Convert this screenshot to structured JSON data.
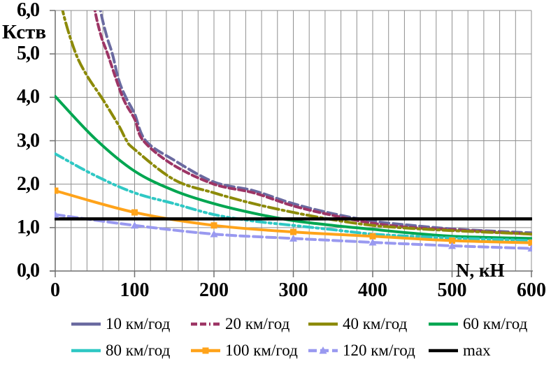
{
  "chart_data": {
    "type": "line",
    "title": "",
    "xlabel": "N, кН",
    "ylabel": "Кств",
    "xlim": [
      0,
      600
    ],
    "ylim": [
      0,
      6
    ],
    "x_minor_step": 20,
    "x_major_step": 100,
    "y_major_step": 1,
    "x_tick_labels": [
      "0",
      "100",
      "200",
      "300",
      "400",
      "500",
      "600"
    ],
    "y_tick_labels": [
      "0,0",
      "1,0",
      "2,0",
      "3,0",
      "4,0",
      "5,0",
      "6,0"
    ],
    "grid": true,
    "legend_position": "bottom",
    "grid_color": "#8f8f8f",
    "series": [
      {
        "id": "v10",
        "name": "10 км/год",
        "color": "#6A6AA0",
        "style": "long-dash",
        "marker": "none",
        "points": [
          [
            50,
            6.8
          ],
          [
            57,
            6.0
          ],
          [
            65,
            5.4
          ],
          [
            72,
            5.0
          ],
          [
            80,
            4.4
          ],
          [
            89,
            4.0
          ],
          [
            100,
            3.62
          ],
          [
            114,
            3.0
          ],
          [
            150,
            2.55
          ],
          [
            200,
            2.05
          ],
          [
            250,
            1.85
          ],
          [
            300,
            1.55
          ],
          [
            350,
            1.32
          ],
          [
            400,
            1.15
          ],
          [
            450,
            1.05
          ],
          [
            500,
            0.97
          ],
          [
            550,
            0.92
          ],
          [
            600,
            0.88
          ]
        ]
      },
      {
        "id": "v20",
        "name": "20 км/год",
        "color": "#9D3565",
        "style": "dash",
        "marker": "none",
        "points": [
          [
            44,
            6.8
          ],
          [
            50,
            6.0
          ],
          [
            58,
            5.4
          ],
          [
            66,
            5.0
          ],
          [
            85,
            4.0
          ],
          [
            100,
            3.5
          ],
          [
            111,
            3.0
          ],
          [
            148,
            2.45
          ],
          [
            200,
            2.0
          ],
          [
            250,
            1.8
          ],
          [
            300,
            1.5
          ],
          [
            350,
            1.28
          ],
          [
            400,
            1.1
          ],
          [
            450,
            1.0
          ],
          [
            500,
            0.95
          ],
          [
            550,
            0.9
          ],
          [
            600,
            0.85
          ]
        ]
      },
      {
        "id": "v40",
        "name": "40 км/год",
        "color": "#8C8A09",
        "style": "dash-dot",
        "marker": "none",
        "points": [
          [
            5,
            6.6
          ],
          [
            10,
            5.95
          ],
          [
            25,
            5.05
          ],
          [
            40,
            4.5
          ],
          [
            60,
            3.95
          ],
          [
            80,
            3.35
          ],
          [
            90,
            3.0
          ],
          [
            100,
            2.8
          ],
          [
            150,
            2.1
          ],
          [
            200,
            1.8
          ],
          [
            250,
            1.55
          ],
          [
            300,
            1.35
          ],
          [
            350,
            1.18
          ],
          [
            400,
            1.05
          ],
          [
            450,
            0.98
          ],
          [
            500,
            0.93
          ],
          [
            550,
            0.89
          ],
          [
            600,
            0.85
          ]
        ]
      },
      {
        "id": "v60",
        "name": "60 км/год",
        "color": "#00A651",
        "style": "solid",
        "marker": "none",
        "points": [
          [
            0,
            4.02
          ],
          [
            50,
            3.05
          ],
          [
            100,
            2.3
          ],
          [
            150,
            1.85
          ],
          [
            200,
            1.55
          ],
          [
            250,
            1.33
          ],
          [
            300,
            1.16
          ],
          [
            350,
            1.05
          ],
          [
            400,
            0.96
          ],
          [
            450,
            0.87
          ],
          [
            500,
            0.8
          ],
          [
            550,
            0.77
          ],
          [
            600,
            0.75
          ]
        ]
      },
      {
        "id": "v80",
        "name": "80 км/год",
        "color": "#2FC8C4",
        "style": "dash-dot-dot",
        "marker": "none",
        "points": [
          [
            0,
            2.7
          ],
          [
            50,
            2.2
          ],
          [
            100,
            1.8
          ],
          [
            150,
            1.55
          ],
          [
            200,
            1.3
          ],
          [
            250,
            1.15
          ],
          [
            300,
            1.05
          ],
          [
            350,
            0.95
          ],
          [
            400,
            0.85
          ],
          [
            450,
            0.8
          ],
          [
            500,
            0.76
          ],
          [
            550,
            0.73
          ],
          [
            600,
            0.7
          ]
        ]
      },
      {
        "id": "v100",
        "name": "100 км/год",
        "color": "#FFA31A",
        "style": "solid",
        "marker": "square",
        "points": [
          [
            0,
            1.85
          ],
          [
            100,
            1.35
          ],
          [
            200,
            1.05
          ],
          [
            300,
            0.9
          ],
          [
            400,
            0.8
          ],
          [
            500,
            0.7
          ],
          [
            600,
            0.65
          ]
        ]
      },
      {
        "id": "v120",
        "name": "120 км/год",
        "color": "#9999F0",
        "style": "long-dash",
        "marker": "triangle",
        "points": [
          [
            0,
            1.3
          ],
          [
            100,
            1.05
          ],
          [
            200,
            0.85
          ],
          [
            300,
            0.75
          ],
          [
            400,
            0.66
          ],
          [
            500,
            0.58
          ],
          [
            600,
            0.52
          ]
        ]
      },
      {
        "id": "max",
        "name": "max",
        "color": "#000000",
        "style": "solid",
        "marker": "none",
        "points": [
          [
            0,
            1.2
          ],
          [
            600,
            1.2
          ]
        ]
      }
    ]
  }
}
